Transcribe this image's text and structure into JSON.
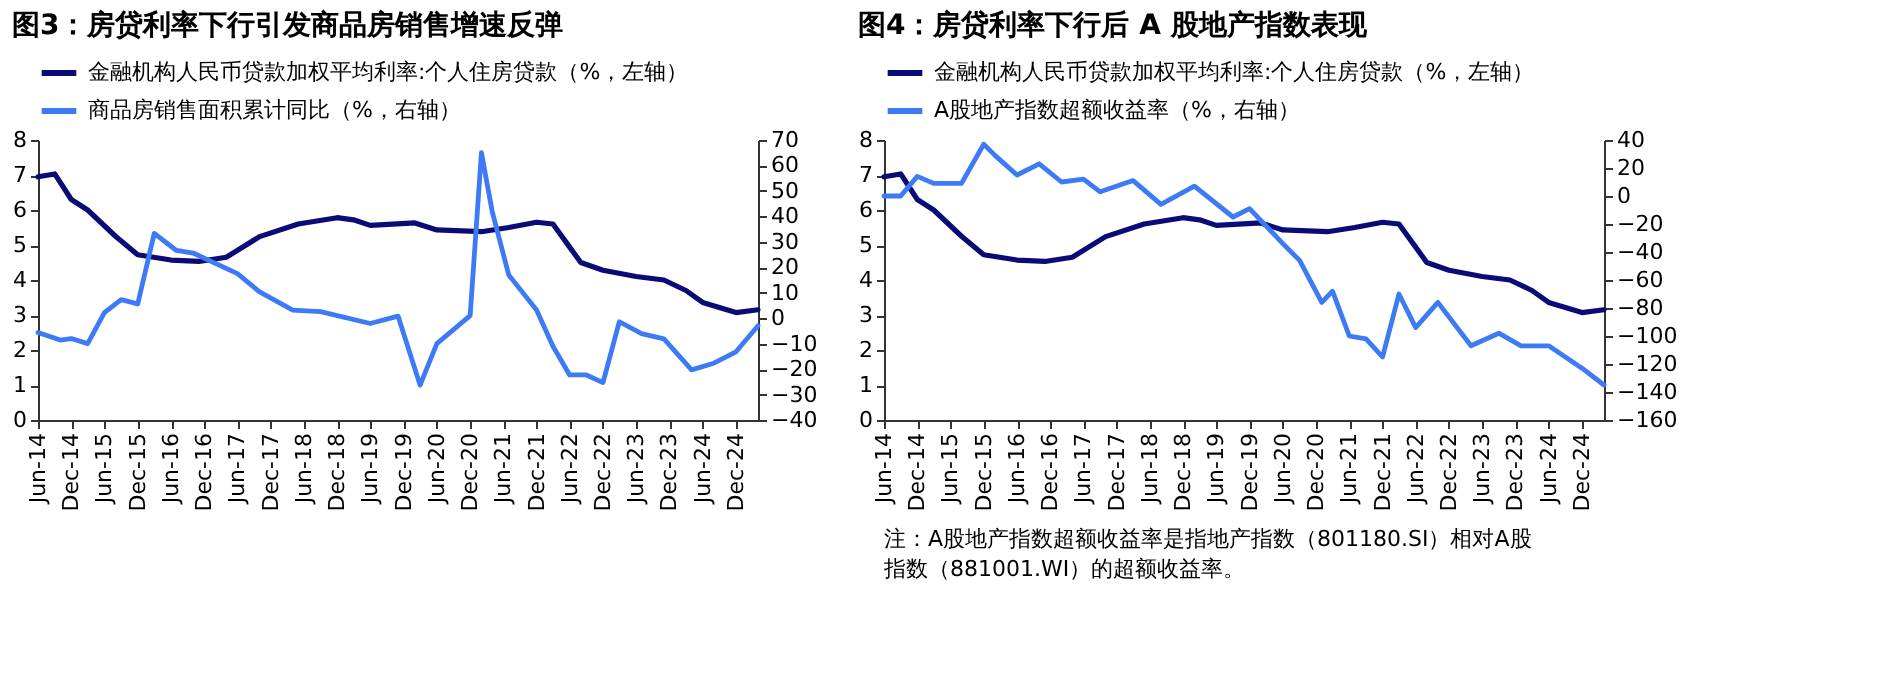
{
  "chart_data": [
    {
      "type": "line",
      "title": "图3：房贷利率下行引发商品房销售增速反弹",
      "legend": "top",
      "grid": false,
      "xlim": [
        "2014-06",
        "2025-04"
      ],
      "xticks": [
        {
          "value": "2014-06",
          "label": "Jun-14"
        },
        {
          "value": "2014-12",
          "label": "Dec-14"
        },
        {
          "value": "2015-06",
          "label": "Jun-15"
        },
        {
          "value": "2015-12",
          "label": "Dec-15"
        },
        {
          "value": "2016-06",
          "label": "Jun-16"
        },
        {
          "value": "2016-12",
          "label": "Dec-16"
        },
        {
          "value": "2017-06",
          "label": "Jun-17"
        },
        {
          "value": "2017-12",
          "label": "Dec-17"
        },
        {
          "value": "2018-06",
          "label": "Jun-18"
        },
        {
          "value": "2018-12",
          "label": "Dec-18"
        },
        {
          "value": "2019-06",
          "label": "Jun-19"
        },
        {
          "value": "2019-12",
          "label": "Dec-19"
        },
        {
          "value": "2020-06",
          "label": "Jun-20"
        },
        {
          "value": "2020-12",
          "label": "Dec-20"
        },
        {
          "value": "2021-06",
          "label": "Jun-21"
        },
        {
          "value": "2021-12",
          "label": "Dec-21"
        },
        {
          "value": "2022-06",
          "label": "Jun-22"
        },
        {
          "value": "2022-12",
          "label": "Dec-22"
        },
        {
          "value": "2023-06",
          "label": "Jun-23"
        },
        {
          "value": "2023-12",
          "label": "Dec-23"
        },
        {
          "value": "2024-06",
          "label": "Jun-24"
        },
        {
          "value": "2024-12",
          "label": "Dec-24"
        }
      ],
      "ylim": [
        0,
        8
      ],
      "yticks": [
        0,
        1,
        2,
        3,
        4,
        5,
        6,
        7,
        8
      ],
      "y2lim": [
        -40,
        70
      ],
      "y2ticks": [
        -40,
        -30,
        -20,
        -10,
        0,
        10,
        20,
        30,
        40,
        50,
        60,
        70
      ],
      "series": [
        {
          "name": "金融机构人民币贷款加权平均利率:个人住房贷款（%，左轴）",
          "color": "#0b0b78",
          "axis": "y",
          "x": [
            "2014-06",
            "2014-09",
            "2014-12",
            "2015-03",
            "2015-08",
            "2015-12",
            "2016-06",
            "2016-11",
            "2017-04",
            "2017-10",
            "2018-05",
            "2018-12",
            "2019-03",
            "2019-06",
            "2020-02",
            "2020-06",
            "2021-02",
            "2021-07",
            "2021-12",
            "2022-03",
            "2022-06",
            "2022-08",
            "2022-12",
            "2023-06",
            "2023-11",
            "2024-03",
            "2024-06",
            "2024-12",
            "2025-04"
          ],
          "values": [
            6.95,
            7.03,
            6.3,
            6.0,
            5.25,
            4.72,
            4.57,
            4.53,
            4.65,
            5.24,
            5.6,
            5.78,
            5.72,
            5.56,
            5.63,
            5.43,
            5.38,
            5.5,
            5.65,
            5.6,
            4.94,
            4.5,
            4.28,
            4.1,
            4.0,
            3.7,
            3.36,
            3.07,
            3.15
          ]
        },
        {
          "name": "商品房销售面积累计同比（%，右轴）",
          "color": "#3d7af5",
          "axis": "y2",
          "x": [
            "2014-06",
            "2014-10",
            "2014-12",
            "2015-03",
            "2015-06",
            "2015-09",
            "2015-12",
            "2016-03",
            "2016-07",
            "2016-10",
            "2017-06",
            "2017-10",
            "2018-04",
            "2018-09",
            "2019-06",
            "2019-11",
            "2020-03",
            "2020-06",
            "2020-12",
            "2021-02",
            "2021-04",
            "2021-07",
            "2021-12",
            "2022-03",
            "2022-06",
            "2022-09",
            "2022-12",
            "2023-03",
            "2023-07",
            "2023-11",
            "2024-04",
            "2024-08",
            "2024-12",
            "2025-04"
          ],
          "values": [
            -5.6,
            -8.6,
            -8,
            -10,
            2.2,
            7.3,
            5.6,
            33.3,
            26.6,
            25.6,
            17.5,
            10.3,
            3.2,
            2.6,
            -2.1,
            0.8,
            -26.3,
            -10,
            1,
            65,
            42,
            17,
            3.2,
            -11,
            -22.3,
            -22.3,
            -25.3,
            -1.4,
            -6.1,
            -8.1,
            -20.3,
            -17.7,
            -13.2,
            -3
          ]
        }
      ]
    },
    {
      "type": "line",
      "title": "图4：房贷利率下行后 A 股地产指数表现",
      "legend": "top",
      "grid": false,
      "xlim": [
        "2014-06",
        "2025-04"
      ],
      "xticks": [
        {
          "value": "2014-06",
          "label": "Jun-14"
        },
        {
          "value": "2014-12",
          "label": "Dec-14"
        },
        {
          "value": "2015-06",
          "label": "Jun-15"
        },
        {
          "value": "2015-12",
          "label": "Dec-15"
        },
        {
          "value": "2016-06",
          "label": "Jun-16"
        },
        {
          "value": "2016-12",
          "label": "Dec-16"
        },
        {
          "value": "2017-06",
          "label": "Jun-17"
        },
        {
          "value": "2017-12",
          "label": "Dec-17"
        },
        {
          "value": "2018-06",
          "label": "Jun-18"
        },
        {
          "value": "2018-12",
          "label": "Dec-18"
        },
        {
          "value": "2019-06",
          "label": "Jun-19"
        },
        {
          "value": "2019-12",
          "label": "Dec-19"
        },
        {
          "value": "2020-06",
          "label": "Jun-20"
        },
        {
          "value": "2020-12",
          "label": "Dec-20"
        },
        {
          "value": "2021-06",
          "label": "Jun-21"
        },
        {
          "value": "2021-12",
          "label": "Dec-21"
        },
        {
          "value": "2022-06",
          "label": "Jun-22"
        },
        {
          "value": "2022-12",
          "label": "Dec-22"
        },
        {
          "value": "2023-06",
          "label": "Jun-23"
        },
        {
          "value": "2023-12",
          "label": "Dec-23"
        },
        {
          "value": "2024-06",
          "label": "Jun-24"
        },
        {
          "value": "2024-12",
          "label": "Dec-24"
        }
      ],
      "ylim": [
        0,
        8
      ],
      "yticks": [
        0,
        1,
        2,
        3,
        4,
        5,
        6,
        7,
        8
      ],
      "y2lim": [
        -160,
        40
      ],
      "y2ticks": [
        -160,
        -140,
        -120,
        -100,
        -80,
        -60,
        -40,
        -20,
        0,
        20,
        40
      ],
      "series": [
        {
          "name": "金融机构人民币贷款加权平均利率:个人住房贷款（%，左轴）",
          "color": "#0b0b78",
          "axis": "y",
          "x": [
            "2014-06",
            "2014-09",
            "2014-12",
            "2015-03",
            "2015-08",
            "2015-12",
            "2016-06",
            "2016-11",
            "2017-04",
            "2017-10",
            "2018-05",
            "2018-12",
            "2019-03",
            "2019-06",
            "2020-02",
            "2020-06",
            "2021-02",
            "2021-07",
            "2021-12",
            "2022-03",
            "2022-06",
            "2022-08",
            "2022-12",
            "2023-06",
            "2023-11",
            "2024-03",
            "2024-06",
            "2024-12",
            "2025-04"
          ],
          "values": [
            6.95,
            7.03,
            6.3,
            6.0,
            5.25,
            4.72,
            4.57,
            4.53,
            4.65,
            5.24,
            5.6,
            5.78,
            5.72,
            5.56,
            5.63,
            5.43,
            5.38,
            5.5,
            5.65,
            5.6,
            4.94,
            4.5,
            4.28,
            4.1,
            4.0,
            3.7,
            3.36,
            3.07,
            3.15
          ]
        },
        {
          "name": "A股地产指数超额收益率（%，右轴）",
          "color": "#3d7af5",
          "axis": "y2",
          "x": [
            "2014-06",
            "2014-09",
            "2014-12",
            "2015-03",
            "2015-08",
            "2015-12",
            "2016-02",
            "2016-06",
            "2016-10",
            "2017-02",
            "2017-06",
            "2017-09",
            "2018-03",
            "2018-08",
            "2019-02",
            "2019-09",
            "2019-12",
            "2020-06",
            "2020-09",
            "2021-01",
            "2021-03",
            "2021-06",
            "2021-09",
            "2021-12",
            "2022-03",
            "2022-06",
            "2022-10",
            "2023-04",
            "2023-09",
            "2024-01",
            "2024-06",
            "2024-12",
            "2025-04"
          ],
          "values": [
            0,
            0,
            14,
            9,
            9,
            37,
            29,
            15,
            23,
            10,
            12,
            3,
            11,
            -6,
            7,
            -15,
            -9,
            -34,
            -46,
            -76,
            -68,
            -100,
            -102,
            -115,
            -70,
            -94,
            -76,
            -107,
            -98,
            -107,
            -107,
            -123,
            -135
          ]
        }
      ],
      "annotations": [
        "注：A股地产指数超额收益率是指地产指数（801180.SI）相对A股指数（881001.WI）的超额收益率。"
      ]
    }
  ]
}
